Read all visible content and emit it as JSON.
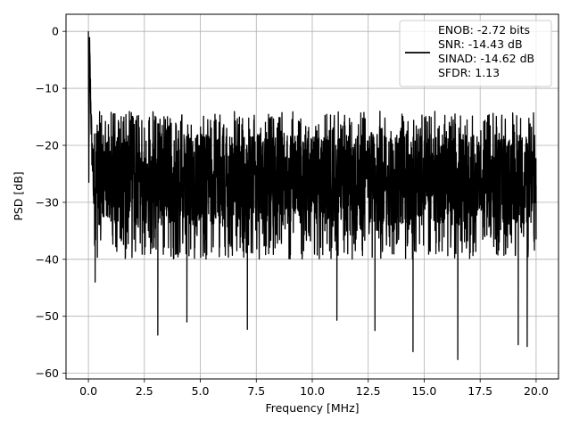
{
  "chart_data": {
    "type": "line",
    "title": "",
    "xlabel": "Frequency [MHz]",
    "ylabel": "PSD [dB]",
    "xlim": [
      -1.0,
      21.0
    ],
    "ylim": [
      -61.0,
      3.0
    ],
    "x_ticks": [
      0.0,
      2.5,
      5.0,
      7.5,
      10.0,
      12.5,
      15.0,
      17.5,
      20.0
    ],
    "x_tick_labels": [
      "0.0",
      "2.5",
      "5.0",
      "7.5",
      "10.0",
      "12.5",
      "15.0",
      "17.5",
      "20.0"
    ],
    "y_ticks": [
      0,
      -10,
      -20,
      -30,
      -40,
      -50,
      -60
    ],
    "y_tick_labels": [
      "0",
      "−10",
      "−20",
      "−30",
      "−40",
      "−50",
      "−60"
    ],
    "grid": true,
    "legend_position": "top-right",
    "legend_lines": [
      "ENOB: -2.72 bits",
      "SNR: -14.43 dB",
      "SINAD: -14.62 dB",
      "SFDR: 1.13"
    ],
    "series": [
      {
        "color": "#000000",
        "x": [
          0.0,
          0.02,
          0.05,
          0.1,
          0.15,
          0.2,
          0.3,
          0.5,
          0.75,
          1.0,
          1.25,
          1.5,
          2.0,
          2.5,
          3.0,
          3.1,
          3.5,
          4.0,
          4.4,
          4.5,
          5.0,
          5.5,
          6.0,
          6.5,
          7.0,
          7.1,
          7.5,
          8.0,
          8.5,
          9.0,
          9.5,
          10.0,
          10.5,
          11.0,
          11.1,
          11.5,
          12.0,
          12.5,
          12.8,
          13.0,
          13.5,
          14.0,
          14.5,
          15.0,
          15.5,
          16.0,
          16.5,
          17.0,
          17.5,
          18.0,
          18.5,
          19.0,
          19.2,
          19.5,
          19.6,
          20.0
        ],
        "y": [
          0.0,
          -26.5,
          -3.5,
          -12.0,
          -20.0,
          -24.0,
          -44.0,
          -25.0,
          -28.0,
          -26.0,
          -30.0,
          -27.0,
          -25.0,
          -30.0,
          -27.0,
          -53.3,
          -28.0,
          -30.0,
          -51.0,
          -27.0,
          -29.0,
          -27.0,
          -31.0,
          -28.0,
          -26.0,
          -52.3,
          -29.0,
          -27.0,
          -28.0,
          -31.0,
          -27.0,
          -28.0,
          -26.0,
          -29.0,
          -50.7,
          -28.0,
          -27.0,
          -29.0,
          -52.5,
          -28.0,
          -30.0,
          -27.0,
          -56.2,
          -28.0,
          -29.0,
          -27.0,
          -57.6,
          -28.0,
          -30.0,
          -27.0,
          -29.0,
          -27.0,
          -55.0,
          -28.0,
          -55.3,
          -27.0
        ],
        "noise_band": {
          "upper": -14.0,
          "lower": -40.0
        }
      }
    ]
  }
}
